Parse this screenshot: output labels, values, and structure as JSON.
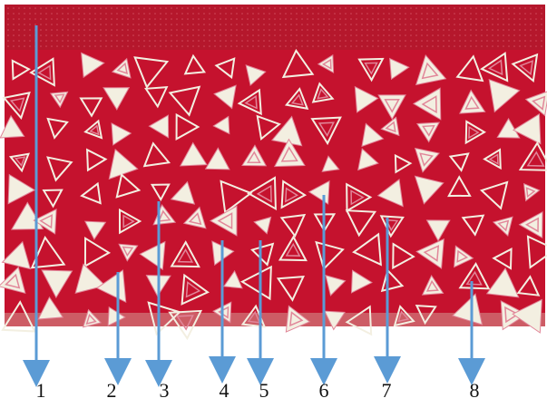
{
  "figure": {
    "fabric_color": "#c5122e",
    "band_color": "#b5172c",
    "motif_color": "#f3efe1",
    "motif_accent": "#e18699",
    "arrow_color": "#5b9bd5"
  },
  "arrows": [
    {
      "label": "1"
    },
    {
      "label": "2"
    },
    {
      "label": "3"
    },
    {
      "label": "4"
    },
    {
      "label": "5"
    },
    {
      "label": "6"
    },
    {
      "label": "7"
    },
    {
      "label": "8"
    }
  ]
}
